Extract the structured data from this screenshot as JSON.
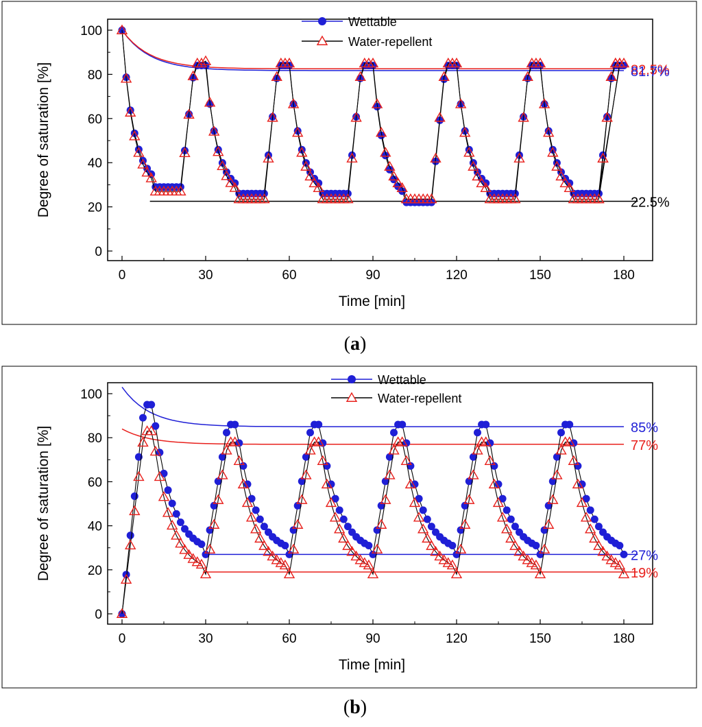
{
  "chart_data": [
    {
      "panel_label": "a",
      "type": "line",
      "xlabel": "Time [min]",
      "ylabel": "Degree of saturation [%]",
      "xlim": [
        -5,
        190
      ],
      "ylim": [
        -3,
        102
      ],
      "xticks": [
        0,
        30,
        60,
        90,
        120,
        150,
        180
      ],
      "yticks": [
        0,
        20,
        40,
        60,
        80,
        100
      ],
      "legend": {
        "position": "top-center",
        "entries": [
          "Wettable",
          "Water-repellent"
        ]
      },
      "cycle": {
        "period": 30,
        "start_high": 100,
        "wettable": {
          "low": 26,
          "high": 84,
          "low_first": 29,
          "low_last": 22
        },
        "water_repellent": {
          "low": 23.5,
          "high": 85,
          "low_first": 27,
          "high_first": 86
        }
      },
      "series": [
        {
          "name": "Wettable",
          "marker": "circle",
          "color": "#1f1fd6",
          "envelope_upper": {
            "from": 100,
            "to": 81.7
          }
        },
        {
          "name": "Water-repellent",
          "marker": "triangle",
          "color": "#e8201c",
          "envelope_upper": {
            "from": 100,
            "to": 82.5
          }
        }
      ],
      "reference_lines": [
        {
          "value": 82.5,
          "label": "82.5%",
          "color": "#e8201c"
        },
        {
          "value": 81.7,
          "label": "81.7%",
          "color": "#1f1fd6"
        },
        {
          "value": 22.5,
          "label": "22.5%",
          "color": "#000000"
        }
      ]
    },
    {
      "panel_label": "b",
      "type": "line",
      "xlabel": "Time [min]",
      "ylabel": "Degree of saturation [%]",
      "xlim": [
        -5,
        190
      ],
      "ylim": [
        -3,
        102
      ],
      "xticks": [
        0,
        30,
        60,
        90,
        120,
        150,
        180
      ],
      "yticks": [
        0,
        20,
        40,
        60,
        80,
        100
      ],
      "legend": {
        "position": "top-center",
        "entries": [
          "Wettable",
          "Water-repellent"
        ]
      },
      "cycle": {
        "period": 30,
        "start_low": 0,
        "wettable": {
          "low": 27,
          "high": 86,
          "peak_first": 95
        },
        "water_repellent": {
          "low": 18,
          "high": 78,
          "peak_first": 83
        }
      },
      "series": [
        {
          "name": "Wettable",
          "marker": "circle",
          "color": "#1f1fd6",
          "envelope_upper": {
            "from": 103,
            "to": 85
          }
        },
        {
          "name": "Water-repellent",
          "marker": "triangle",
          "color": "#e8201c",
          "envelope_upper": {
            "from": 84,
            "to": 77
          }
        }
      ],
      "reference_lines": [
        {
          "value": 85,
          "label": "85%",
          "color": "#1f1fd6"
        },
        {
          "value": 77,
          "label": "77%",
          "color": "#e8201c"
        },
        {
          "value": 27,
          "label": "27%",
          "color": "#1f1fd6"
        },
        {
          "value": 19,
          "label": "19%",
          "color": "#e8201c"
        }
      ]
    }
  ]
}
